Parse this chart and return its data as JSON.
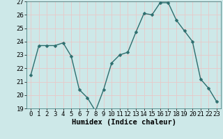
{
  "x": [
    0,
    1,
    2,
    3,
    4,
    5,
    6,
    7,
    8,
    9,
    10,
    11,
    12,
    13,
    14,
    15,
    16,
    17,
    18,
    19,
    20,
    21,
    22,
    23
  ],
  "y": [
    21.5,
    23.7,
    23.7,
    23.7,
    23.9,
    22.9,
    20.4,
    19.8,
    18.8,
    20.4,
    22.4,
    23.0,
    23.2,
    24.7,
    26.1,
    26.0,
    26.9,
    26.9,
    25.6,
    24.8,
    24.0,
    21.2,
    20.5,
    19.5
  ],
  "line_color": "#2d6e6e",
  "marker": "D",
  "markersize": 2.5,
  "linewidth": 1.0,
  "background_color": "#cde8e8",
  "grid_color": "#e8c8c8",
  "xlabel": "Humidex (Indice chaleur)",
  "xlabel_fontsize": 7.5,
  "tick_fontsize": 6.5,
  "ylim": [
    19,
    27
  ],
  "xlim": [
    -0.5,
    23.5
  ],
  "yticks": [
    19,
    20,
    21,
    22,
    23,
    24,
    25,
    26,
    27
  ],
  "xticks": [
    0,
    1,
    2,
    3,
    4,
    5,
    6,
    7,
    8,
    9,
    10,
    11,
    12,
    13,
    14,
    15,
    16,
    17,
    18,
    19,
    20,
    21,
    22,
    23
  ]
}
